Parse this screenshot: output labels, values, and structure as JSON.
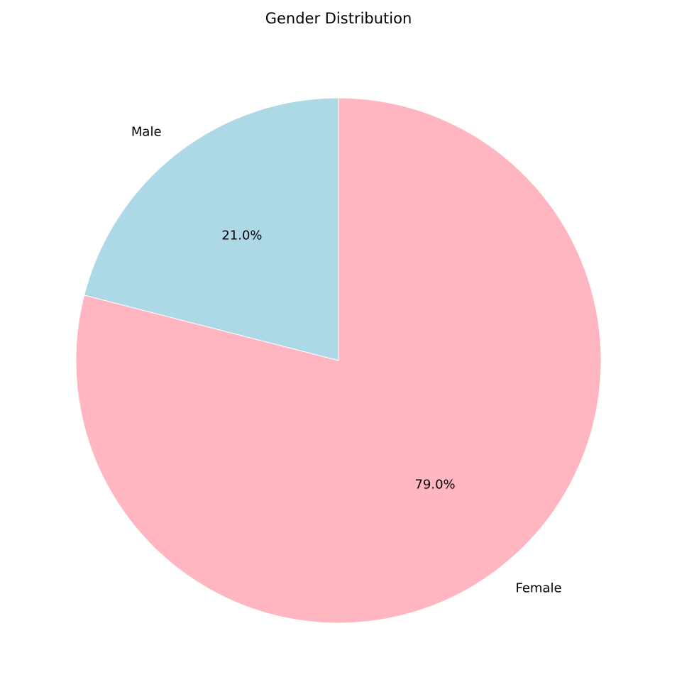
{
  "chart_data": {
    "type": "pie",
    "title": "Gender Distribution",
    "categories": [
      "Male",
      "Female"
    ],
    "values": [
      21.0,
      79.0
    ],
    "value_labels": [
      "21.0%",
      "79.0%"
    ],
    "colors": [
      "#add8e6",
      "#ffb6c1"
    ],
    "start_angle_deg": 90,
    "direction": "counterclockwise",
    "legend": "none"
  }
}
